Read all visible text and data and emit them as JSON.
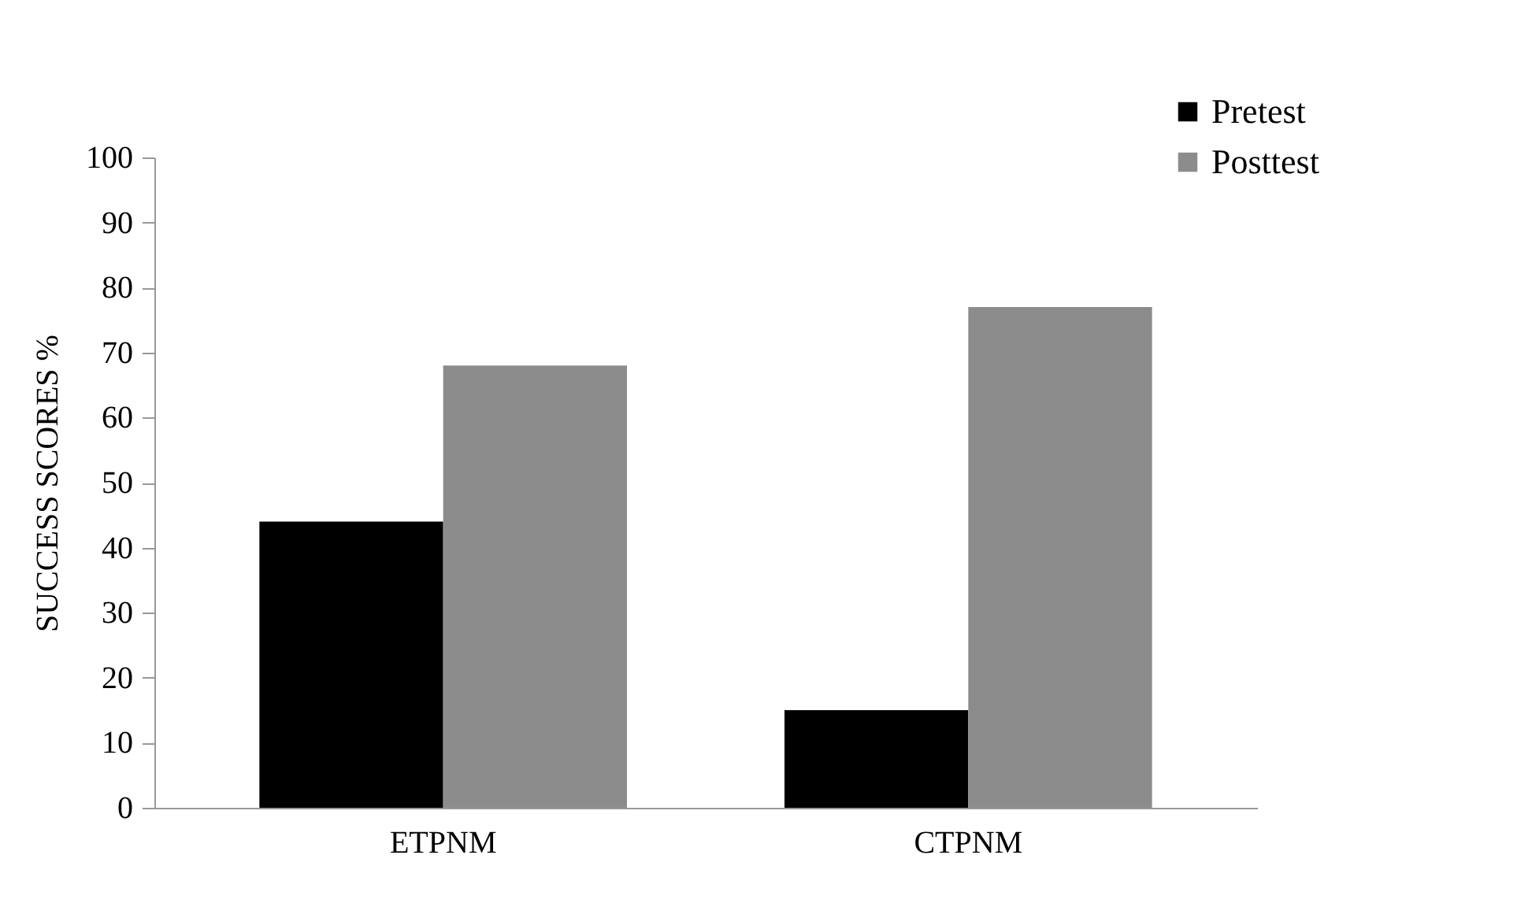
{
  "chart_data": {
    "type": "bar",
    "ylabel": "SUCCESS SCORES %",
    "categories": [
      "ETPNM",
      "CTPNM"
    ],
    "series": [
      {
        "name": "Pretest",
        "color": "#000000",
        "values": [
          44,
          15
        ]
      },
      {
        "name": "Posttest",
        "color": "#8c8c8c",
        "values": [
          68,
          77
        ]
      }
    ],
    "ylim": [
      0,
      100
    ],
    "yticks": [
      0,
      10,
      20,
      30,
      40,
      50,
      60,
      70,
      80,
      90,
      100
    ],
    "grid": false,
    "legend": "top right"
  }
}
